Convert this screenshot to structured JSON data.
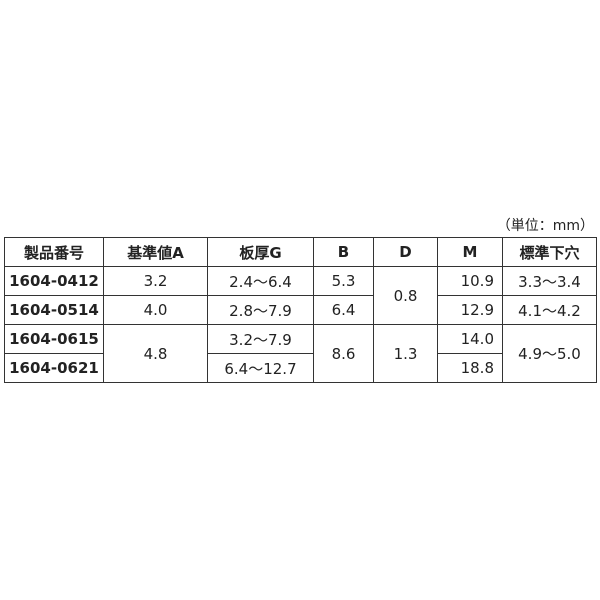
{
  "unit_label": "（単位：mm）",
  "headers": [
    "製品番号",
    "基準値A",
    "板厚G",
    "B",
    "D",
    "M",
    "標準下穴"
  ],
  "rows": [
    {
      "part": "1604-0412",
      "A": "3.2",
      "G": "2.4～6.4",
      "B": "5.3",
      "D": "0.8",
      "M": "10.9",
      "hole": "3.3～3.4"
    },
    {
      "part": "1604-0514",
      "A": "4.0",
      "G": "2.8～7.9",
      "B": "6.4",
      "M": "12.9",
      "hole": "4.1～4.2"
    },
    {
      "part": "1604-0615",
      "A": "4.8",
      "G": "3.2～7.9",
      "B": "8.6",
      "D": "1.3",
      "M": "14.0",
      "hole": "4.9～5.0"
    },
    {
      "part": "1604-0621",
      "G": "6.4～12.7",
      "M": "18.8"
    }
  ]
}
